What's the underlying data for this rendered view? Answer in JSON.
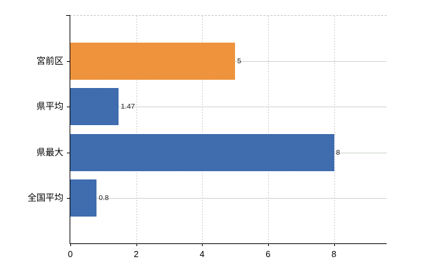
{
  "chart_data": {
    "type": "bar",
    "orientation": "horizontal",
    "title": "",
    "xlabel": "",
    "ylabel": "",
    "categories": [
      "宮前区",
      "県平均",
      "県最大",
      "全国平均"
    ],
    "values": [
      5,
      1.47,
      8,
      0.8
    ],
    "data_labels": [
      "5",
      "1.47",
      "8",
      "0.8"
    ],
    "bar_color_roles": [
      "highlight",
      "base",
      "base",
      "base"
    ],
    "x_ticks": [
      0,
      2,
      4,
      6,
      8
    ],
    "x_tick_labels": [
      "0",
      "2",
      "4",
      "6",
      "8"
    ],
    "xlim": [
      0,
      9.6
    ],
    "grid": "dotted vertical gridlines at x ticks; solid pale-green horizontal line at each category center; dashed top plot border",
    "legend": "none"
  },
  "colors": {
    "bar_base": "#3e6dae",
    "bar_base_dither": [
      "#4a78be",
      "#33619e"
    ],
    "bar_highlight": "#ee9340",
    "bar_highlight_dither": [
      "#f5a04c",
      "#e8862e"
    ],
    "axis_line": "#000000",
    "vertical_gridline": "#cfcfcf",
    "horizontal_gridline": "#ccd6cb",
    "plot_top_border": "#c9c9c9",
    "text": "#000000",
    "background": "#ffffff"
  }
}
